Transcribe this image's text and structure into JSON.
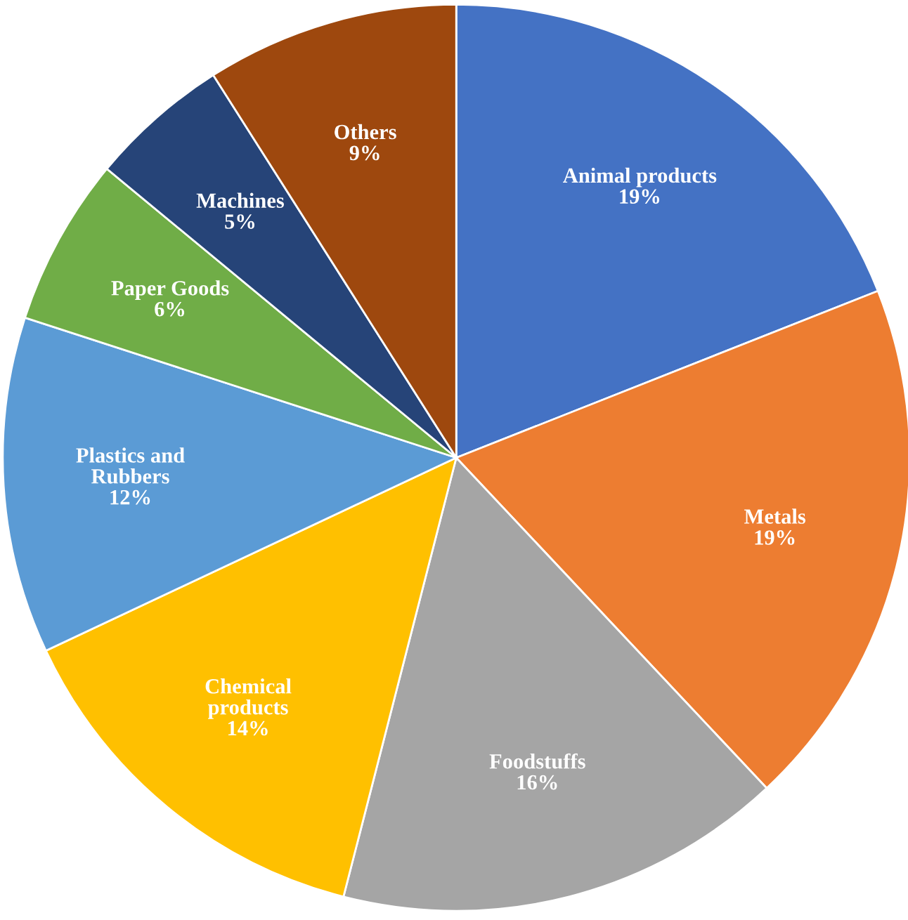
{
  "chart_data": {
    "type": "pie",
    "categories": [
      "Animal products",
      "Metals",
      "Foodstuffs",
      "Chemical\nproducts",
      "Plastics and\nRubbers",
      "Paper Goods",
      "Machines",
      "Others"
    ],
    "values": [
      19,
      19,
      16,
      14,
      12,
      6,
      5,
      9
    ],
    "colors": [
      "#4472c4",
      "#ed7d31",
      "#a5a5a5",
      "#ffc000",
      "#5b9bd5",
      "#70ad47",
      "#264478",
      "#9e480e"
    ],
    "value_labels": [
      "19%",
      "19%",
      "16%",
      "14%",
      "12%",
      "6%",
      "5%",
      "9%"
    ]
  }
}
